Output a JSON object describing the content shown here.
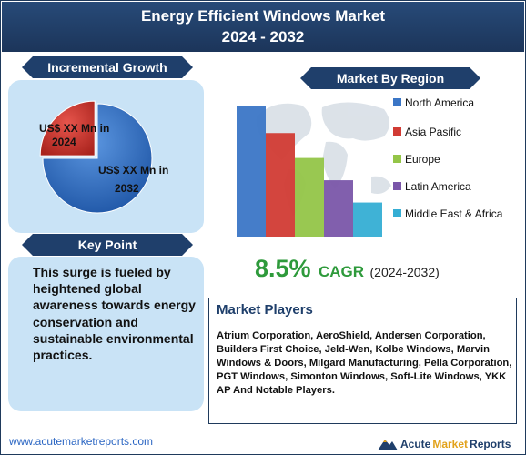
{
  "header": {
    "title_line1": "Energy Efficient Windows Market",
    "title_line2": "2024 - 2032"
  },
  "incremental_growth": {
    "heading": "Incremental Growth",
    "label_2024": "US$ XX Mn in 2024",
    "label_2032": "US$ XX Mn in 2032",
    "colors": {
      "2024": "#d23a32",
      "2032": "#2f6fc4"
    }
  },
  "key_point": {
    "heading": "Key Point",
    "text": "This surge is fueled by heightened global awareness towards energy conservation and sustainable environmental practices."
  },
  "market_by_region": {
    "heading": "Market By Region"
  },
  "chart_data": [
    {
      "type": "pie",
      "slices": [
        {
          "label": "US$ XX Mn in 2024",
          "value": 25,
          "color": "#d23a32"
        },
        {
          "label": "US$ XX Mn in 2032",
          "value": 75,
          "color": "#2f6fc4"
        }
      ]
    },
    {
      "type": "bar",
      "categories": [
        "North America",
        "Asia Pasific",
        "Europe",
        "Latin America",
        "Middle East & Africa"
      ],
      "values": [
        100,
        79,
        60,
        43,
        26
      ],
      "colors": [
        "#3b76c6",
        "#d13b34",
        "#94c548",
        "#7a56a9",
        "#35aed4"
      ],
      "grid": false,
      "legend": "right"
    }
  ],
  "cagr": {
    "value": "8.5%",
    "word": "CAGR",
    "range": "(2024-2032)"
  },
  "market_players": {
    "title": "Market Players",
    "text": "Atrium Corporation, AeroShield, Andersen Corporation, Builders First Choice, Jeld-Wen, Kolbe Windows, Marvin Windows & Doors, Milgard Manufacturing, Pella Corporation, PGT Windows, Simonton Windows, Soft-Lite Windows, YKK AP And Notable Players."
  },
  "footer": {
    "url": "www.acutemarketreports.com",
    "logo_acute": "Acute",
    "logo_market": "Market",
    "logo_reports": "Reports"
  }
}
